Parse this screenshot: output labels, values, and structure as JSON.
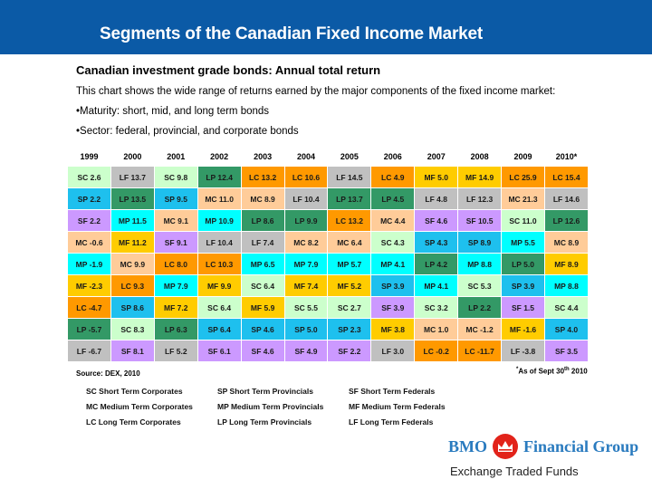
{
  "header": {
    "title": "Segments of the Canadian Fixed Income Market"
  },
  "intro": {
    "subtitle": "Canadian investment grade bonds: Annual total return",
    "description": "This chart shows the wide range of returns earned by the major components of the fixed income market:",
    "bullet1": "•Maturity: short, mid, and long term bonds",
    "bullet2": "•Sector: federal, provincial, and corporate bonds"
  },
  "colors": {
    "SC": "#ccffcc",
    "LF": "#c0c0c0",
    "LP": "#339966",
    "LC": "#ff9900",
    "SP": "#1ec0ee",
    "MC": "#ffcc99",
    "SF": "#cc99ff",
    "MP": "#00ffff",
    "MF": "#ffcc00"
  },
  "table": {
    "years": [
      "1999",
      "2000",
      "2001",
      "2002",
      "2003",
      "2004",
      "2005",
      "2006",
      "2007",
      "2008",
      "2009",
      "2010*"
    ],
    "rows": [
      [
        "SC 2.6",
        "LF 13.7",
        "SC 9.8",
        "LP 12.4",
        "LC 13.2",
        "LC 10.6",
        "LF 14.5",
        "LC 4.9",
        "MF 5.0",
        "MF 14.9",
        "LC 25.9",
        "LC 15.4"
      ],
      [
        "SP 2.2",
        "LP 13.5",
        "SP 9.5",
        "MC 11.0",
        "MC 8.9",
        "LF 10.4",
        "LP 13.7",
        "LP 4.5",
        "LF 4.8",
        "LF 12.3",
        "MC 21.3",
        "LF 14.6"
      ],
      [
        "SF 2.2",
        "MP 11.5",
        "MC 9.1",
        "MP 10.9",
        "LP 8.6",
        "LP 9.9",
        "LC 13.2",
        "MC 4.4",
        "SF 4.6",
        "SF 10.5",
        "SC 11.0",
        "LP 12.6"
      ],
      [
        "MC -0.6",
        "MF 11.2",
        "SF 9.1",
        "LF 10.4",
        "LF 7.4",
        "MC 8.2",
        "MC 6.4",
        "SC 4.3",
        "SP 4.3",
        "SP 8.9",
        "MP 5.5",
        "MC 8.9"
      ],
      [
        "MP -1.9",
        "MC 9.9",
        "LC 8.0",
        "LC 10.3",
        "MP 6.5",
        "MP 7.9",
        "MP 5.7",
        "MP 4.1",
        "LP 4.2",
        "MP 8.8",
        "LP 5.0",
        "MF 8.9"
      ],
      [
        "MF -2.3",
        "LC 9.3",
        "MP 7.9",
        "MF 9.9",
        "SC 6.4",
        "MF 7.4",
        "MF 5.2",
        "SP 3.9",
        "MP 4.1",
        "SC 5.3",
        "SP 3.9",
        "MP 8.8"
      ],
      [
        "LC -4.7",
        "SP 8.6",
        "MF 7.2",
        "SC 6.4",
        "MF 5.9",
        "SC 5.5",
        "SC 2.7",
        "SF 3.9",
        "SC 3.2",
        "LP 2.2",
        "SF 1.5",
        "SC 4.4"
      ],
      [
        "LP -5.7",
        "SC 8.3",
        "LP 6.3",
        "SP 6.4",
        "SP 4.6",
        "SP 5.0",
        "SP 2.3",
        "MF 3.8",
        "MC 1.0",
        "MC -1.2",
        "MF -1.6",
        "SP 4.0"
      ],
      [
        "LF -6.7",
        "SF 8.1",
        "LF 5.2",
        "SF 6.1",
        "SF 4.6",
        "SF 4.9",
        "SF 2.2",
        "LF 3.0",
        "LC -0.2",
        "LC -11.7",
        "LF -3.8",
        "SF 3.5"
      ]
    ]
  },
  "source": "Source: DEX, 2010",
  "footnote": {
    "star": "*",
    "text1": "As of Sept 30",
    "sup": "th",
    "text2": " 2010"
  },
  "legend": [
    [
      "SC Short Term Corporates",
      "SP Short Term Provincials",
      "SF Short Term Federals"
    ],
    [
      "MC Medium Term Corporates",
      "MP Medium Term Provincials",
      "MF Medium Term Federals"
    ],
    [
      "LC Long Term Corporates",
      "LP Long Term Provincials",
      "LF Long Term Federals"
    ]
  ],
  "logo": {
    "left": "BMO",
    "reg": "®",
    "right": "Financial Group",
    "tagline": "Exchange Traded Funds"
  }
}
